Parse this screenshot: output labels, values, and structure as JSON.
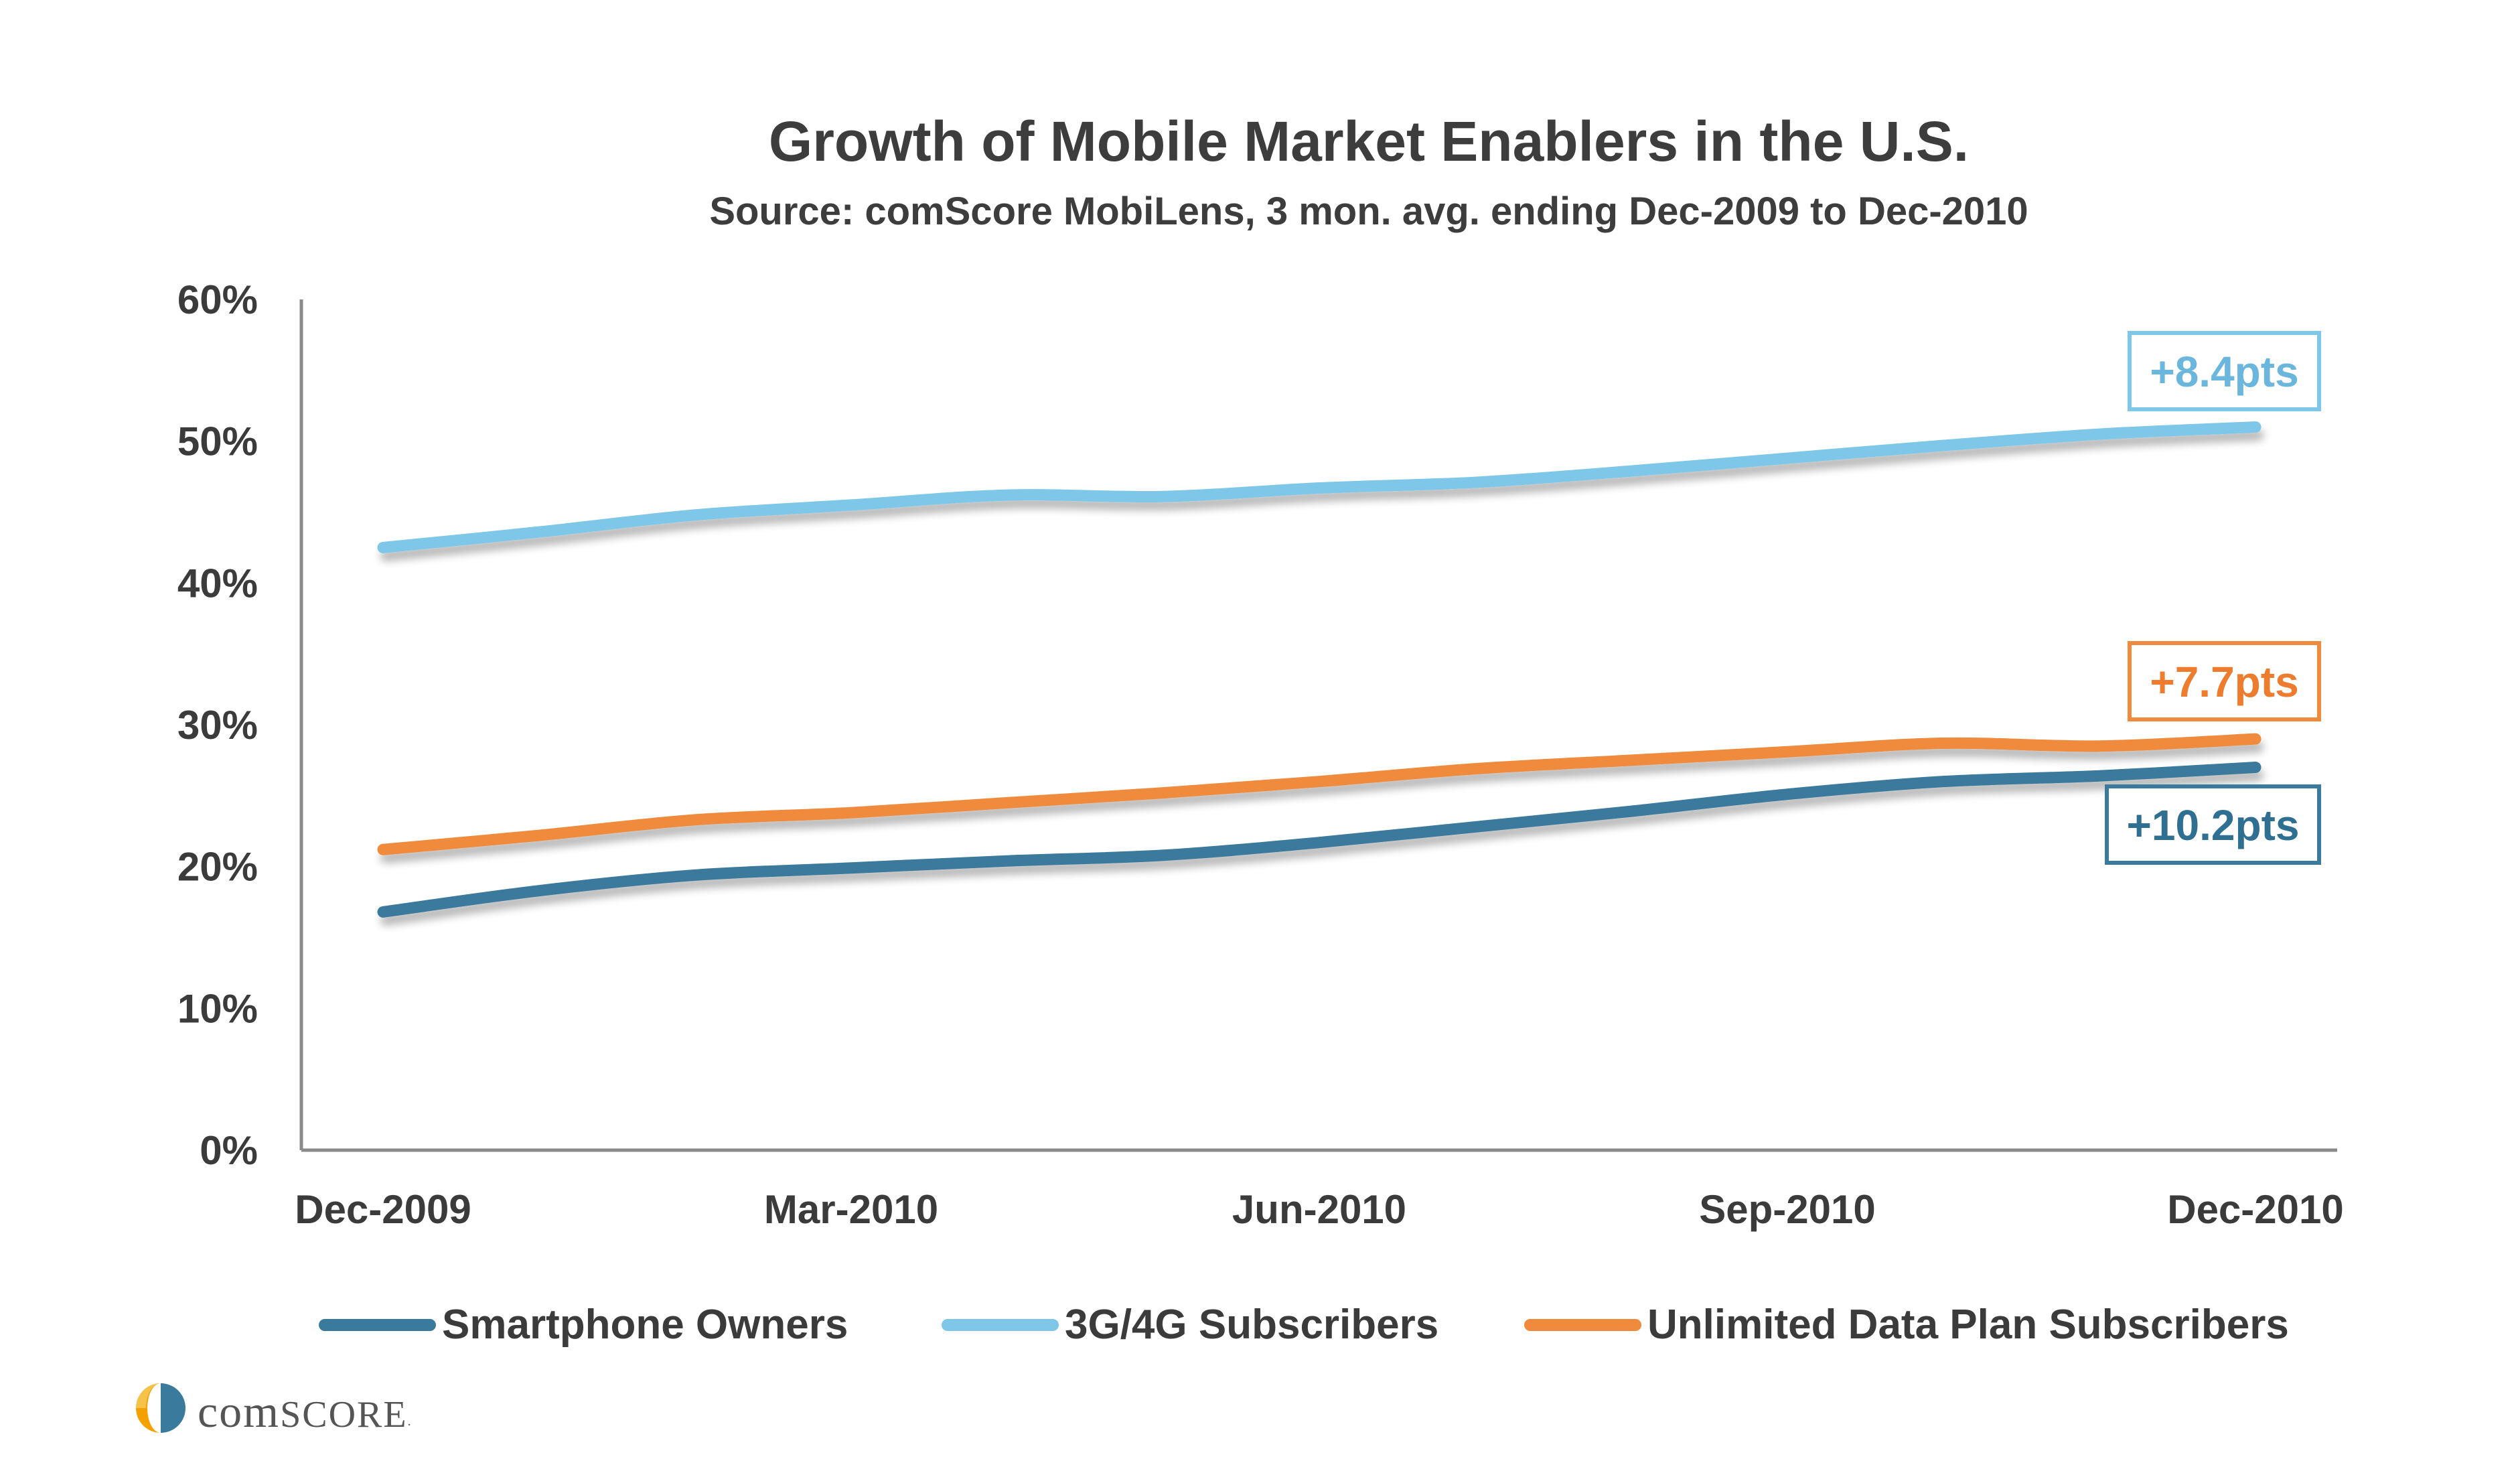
{
  "chart_data": {
    "type": "line",
    "title": "Growth of Mobile Market Enablers in the U.S.",
    "subtitle": "Source: comScore MobiLens, 3 mon. avg. ending Dec-2009 to Dec-2010",
    "xlabel": "",
    "ylabel": "",
    "ylim": [
      0,
      60
    ],
    "y_ticks": [
      "0%",
      "10%",
      "20%",
      "30%",
      "40%",
      "50%",
      "60%"
    ],
    "y_tick_values": [
      0,
      10,
      20,
      30,
      40,
      50,
      60
    ],
    "x": [
      "Dec-2009",
      "Jan-2010",
      "Feb-2010",
      "Mar-2010",
      "Apr-2010",
      "May-2010",
      "Jun-2010",
      "Jul-2010",
      "Aug-2010",
      "Sep-2010",
      "Oct-2010",
      "Nov-2010",
      "Dec-2010"
    ],
    "x_tick_labels": [
      "Dec-2009",
      "Mar-2010",
      "Jun-2010",
      "Sep-2010",
      "Dec-2010"
    ],
    "x_tick_indices": [
      0,
      3,
      6,
      9,
      12
    ],
    "grid": false,
    "legend_position": "bottom",
    "series": [
      {
        "name": "Smartphone Owners",
        "color": "#3a7a9c",
        "values": [
          16.8,
          18.3,
          19.4,
          19.9,
          20.4,
          20.8,
          21.7,
          22.8,
          23.9,
          25.1,
          26.0,
          26.4,
          27.0
        ],
        "annotation": "+10.2pts"
      },
      {
        "name": "3G/4G Subscribers",
        "color": "#7ec7e8",
        "values": [
          42.5,
          43.6,
          44.8,
          45.5,
          46.2,
          46.1,
          46.7,
          47.1,
          47.9,
          48.8,
          49.7,
          50.5,
          51.0
        ],
        "annotation": "+8.4pts"
      },
      {
        "name": "Unlimited Data Plan Subscribers",
        "color": "#f08a3c",
        "values": [
          21.2,
          22.2,
          23.3,
          23.8,
          24.5,
          25.2,
          26.0,
          26.9,
          27.5,
          28.1,
          28.7,
          28.5,
          29.0
        ],
        "annotation": "+7.7pts"
      }
    ]
  },
  "branding": {
    "logo_text": "comScore",
    "logo_colors": [
      "#f4a100",
      "#3a7a9c"
    ]
  }
}
